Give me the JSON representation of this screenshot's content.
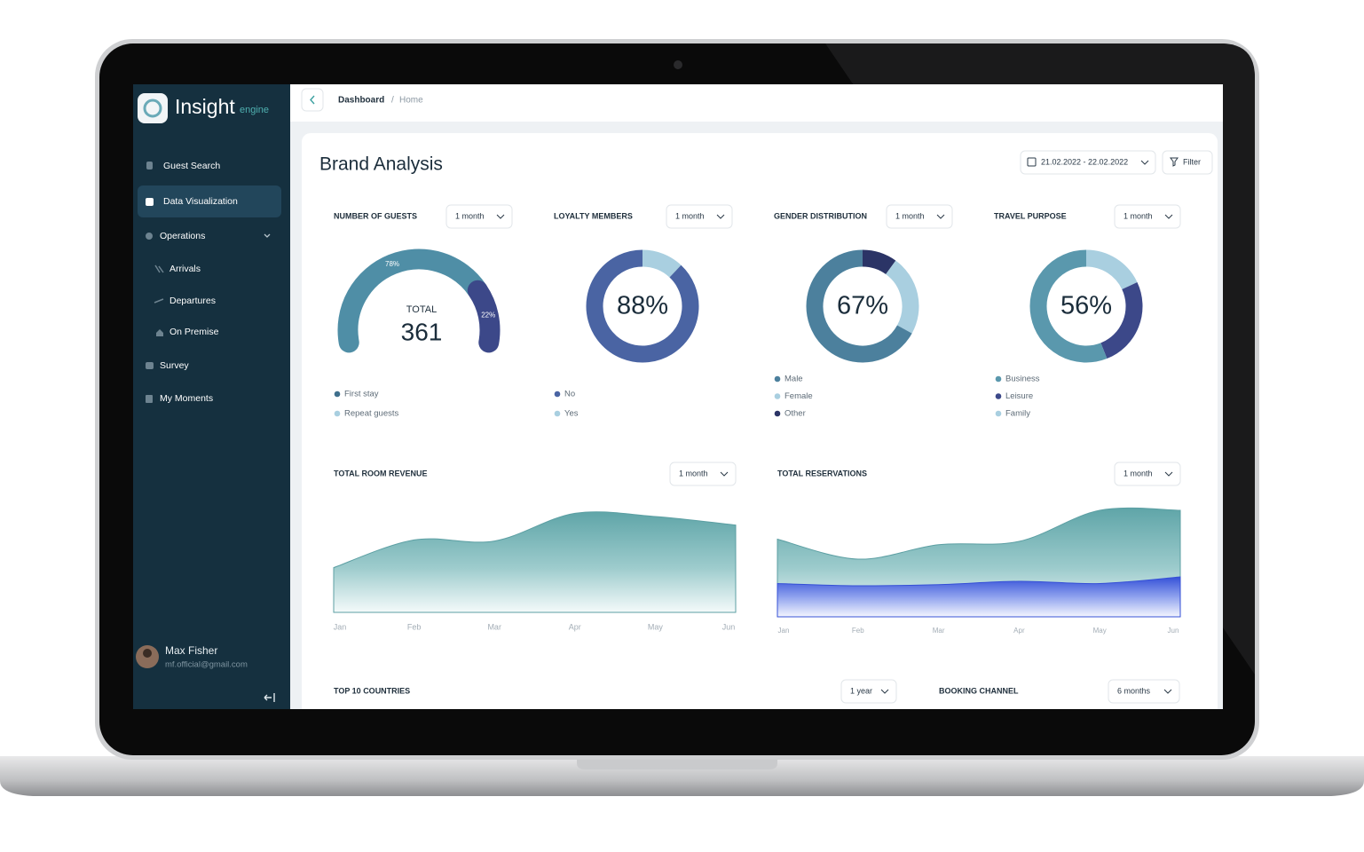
{
  "app": {
    "brand": "Insight",
    "tagline": "engine",
    "nav": [
      "Guest Search",
      "Data Visualization",
      "Operations",
      "Arrivals",
      "Departures",
      "On Premise",
      "Survey",
      "My Moments"
    ],
    "user": {
      "name": "Max Fisher",
      "email": "mf.official@gmail.com"
    }
  },
  "breadcrumb": {
    "section": "Dashboard",
    "separator": "/",
    "page": "Home"
  },
  "title": "Brand Analysis",
  "date_range": "21.02.2022 - 22.02.2022",
  "filter": "Filter",
  "chart_data": [
    {
      "type": "gauge",
      "title": "NUMBER OF GUESTS",
      "period": "1 month",
      "center_label": "TOTAL",
      "total": 361,
      "categories": [
        "First stay",
        "Repeat guests"
      ],
      "values": [
        78,
        22
      ],
      "value_labels": [
        "78%",
        "22%"
      ],
      "colors": [
        "#4f8ea6",
        "#3c4889"
      ],
      "legend_colors": [
        "#3f6f8c",
        "#a9cfe0"
      ]
    },
    {
      "type": "donut",
      "title": "LOYALTY MEMBERS",
      "period": "1 month",
      "center_label": "88%",
      "categories": [
        "No",
        "Yes"
      ],
      "values": [
        88,
        12
      ],
      "colors": [
        "#4a64a3",
        "#a9cfe0"
      ]
    },
    {
      "type": "donut",
      "title": "GENDER DISTRIBUTION",
      "period": "1 month",
      "center_label": "67%",
      "categories": [
        "Male",
        "Female",
        "Other"
      ],
      "values": [
        67,
        23,
        10
      ],
      "colors": [
        "#4c809d",
        "#a9cfe0",
        "#2b3466"
      ]
    },
    {
      "type": "donut",
      "title": "TRAVEL PURPOSE",
      "period": "1 month",
      "center_label": "56%",
      "categories": [
        "Business",
        "Leisure",
        "Family"
      ],
      "values": [
        56,
        26,
        18
      ],
      "colors": [
        "#5a98ad",
        "#3c4889",
        "#a9cfe0"
      ]
    },
    {
      "type": "area",
      "title": "TOTAL ROOM REVENUE",
      "period": "1 month",
      "categories": [
        "Jan",
        "Feb",
        "Mar",
        "Apr",
        "May",
        "Jun"
      ],
      "ylim": [
        0,
        100
      ],
      "series": [
        {
          "color": "teal",
          "values": [
            42,
            68,
            67,
            93,
            90,
            82
          ]
        }
      ]
    },
    {
      "type": "area",
      "title": "TOTAL RESERVATIONS",
      "period": "1 month",
      "categories": [
        "Jan",
        "Feb",
        "Mar",
        "Apr",
        "May",
        "Jun"
      ],
      "ylim": [
        0,
        100
      ],
      "series": [
        {
          "color": "teal",
          "values": [
            70,
            52,
            65,
            68,
            96,
            96
          ]
        },
        {
          "color": "blue",
          "values": [
            30,
            28,
            29,
            32,
            30,
            36
          ]
        }
      ]
    }
  ],
  "sections": [
    {
      "title": "TOP 10 COUNTRIES",
      "period": "1 year"
    },
    {
      "title": "BOOKING CHANNEL",
      "period": "6 months"
    }
  ]
}
